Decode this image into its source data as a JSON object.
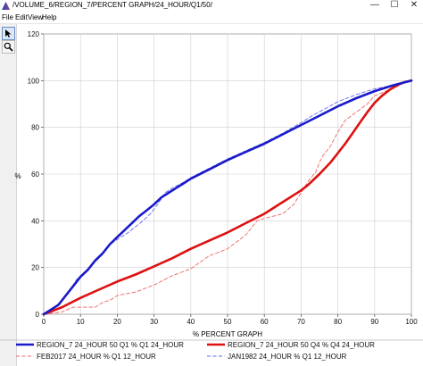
{
  "window": {
    "title": "/VOLUME_6/REGION_7/PERCENT GRAPH/24_HOUR/Q1/50/",
    "minimize_glyph": "—",
    "maximize_glyph": "☐",
    "close_glyph": "✕"
  },
  "menu": {
    "items": [
      {
        "label": "File"
      },
      {
        "label": "Edit"
      },
      {
        "label": "View"
      },
      {
        "label": "Help"
      }
    ]
  },
  "toolbar": {
    "tools": [
      {
        "icon": "arrow-pointer-icon",
        "active": true
      },
      {
        "icon": "zoom-icon",
        "active": false
      }
    ]
  },
  "chart_data": {
    "type": "line",
    "title": "",
    "xlabel": "% PERCENT GRAPH",
    "ylabel": "%",
    "xlim": [
      0,
      100
    ],
    "ylim": [
      0,
      120
    ],
    "x_ticks": [
      "0",
      "10",
      "20",
      "30",
      "40",
      "50",
      "60",
      "70",
      "80",
      "90",
      "100"
    ],
    "y_ticks": [
      "0",
      "20",
      "40",
      "60",
      "80",
      "100",
      "120"
    ],
    "grid": true,
    "legend_position": "bottom",
    "series": [
      {
        "name": "REGION_7 24_HOUR 50 Q1 % Q1 24_HOUR",
        "color": "#1a1acc",
        "style": "solid",
        "width": "thick",
        "x": [
          0,
          2,
          4,
          6,
          8,
          10,
          12,
          14,
          16,
          18,
          20,
          22,
          24,
          26,
          28,
          30,
          32,
          34,
          36,
          38,
          40,
          45,
          50,
          55,
          60,
          65,
          70,
          75,
          80,
          85,
          90,
          95,
          100
        ],
        "y": [
          0,
          2,
          4,
          8,
          12,
          16,
          19,
          23,
          26,
          30,
          33,
          36,
          39,
          42,
          44.5,
          47,
          50,
          52,
          54,
          56,
          58,
          62,
          66,
          69.5,
          73,
          77,
          81,
          85,
          89,
          92.5,
          95.5,
          98,
          100
        ]
      },
      {
        "name": "REGION_7 24_HOUR 50 Q4 % Q4 24_HOUR",
        "color": "#dd1111",
        "style": "solid",
        "width": "thick",
        "x": [
          0,
          5,
          10,
          15,
          20,
          25,
          30,
          35,
          40,
          45,
          50,
          55,
          60,
          65,
          70,
          72,
          75,
          78,
          80,
          82,
          84,
          86,
          88,
          90,
          92,
          94,
          96,
          98,
          100
        ],
        "y": [
          0,
          3,
          7,
          10.5,
          14,
          17,
          20.5,
          24,
          28,
          31.5,
          35,
          39,
          43,
          48,
          53,
          55.5,
          60,
          65,
          69,
          73,
          77.5,
          82,
          86.5,
          90.5,
          93.5,
          96,
          98,
          99.3,
          100
        ]
      },
      {
        "name": "FEB2017 24_HOUR % Q1 12_HOUR",
        "color": "#ee6666",
        "style": "dashed",
        "width": "thin",
        "x": [
          0,
          5,
          8,
          10,
          12,
          14,
          16,
          18,
          20,
          25,
          30,
          35,
          40,
          45,
          50,
          55,
          58,
          60,
          65,
          68,
          70,
          72,
          74,
          75,
          76,
          78,
          80,
          82,
          85,
          88,
          90,
          93,
          95,
          98,
          100
        ],
        "y": [
          0,
          1,
          3,
          3,
          3,
          3,
          5,
          6,
          8,
          9.5,
          12.5,
          16.5,
          19.5,
          25,
          28,
          34,
          40,
          41,
          43,
          47,
          52,
          57,
          61,
          65,
          68,
          72,
          78,
          83,
          86.5,
          90,
          93.5,
          95.5,
          96.5,
          99,
          100
        ]
      },
      {
        "name": "JAN1982 24_HOUR % Q1 12_HOUR",
        "color": "#6666ee",
        "style": "dashed",
        "width": "thin",
        "x": [
          0,
          3,
          5,
          7,
          9,
          11,
          13,
          15,
          17,
          19,
          21,
          23,
          25,
          27,
          29,
          31,
          33,
          35,
          38,
          40,
          45,
          50,
          55,
          60,
          65,
          70,
          73,
          76,
          80,
          85,
          90,
          95,
          100
        ],
        "y": [
          0,
          3,
          6,
          10,
          15,
          18,
          21,
          24,
          28,
          31,
          33,
          35,
          37.5,
          40,
          43,
          47,
          52,
          54,
          56.5,
          58.5,
          62.5,
          66.5,
          70,
          73.5,
          77.5,
          82,
          85,
          87.5,
          91,
          94,
          96.5,
          98,
          100
        ]
      }
    ]
  }
}
